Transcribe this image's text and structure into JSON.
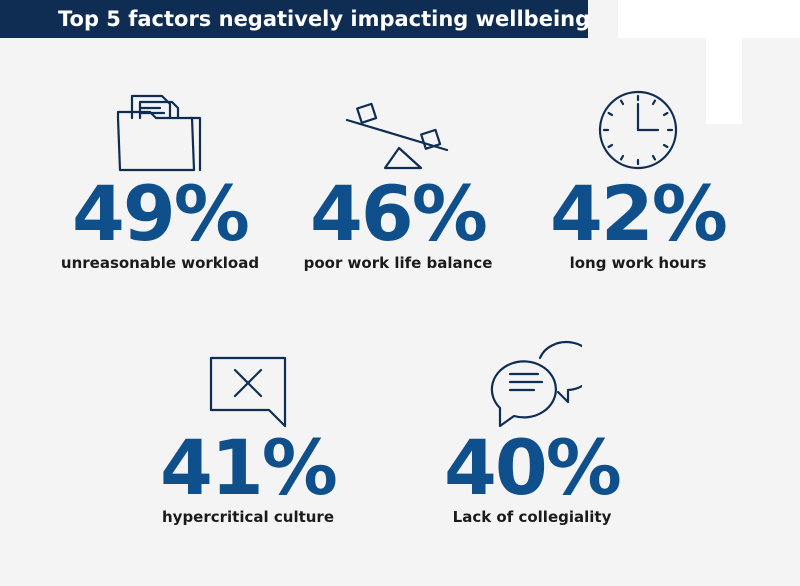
{
  "chart_data": {
    "type": "table",
    "title": "Top 5 factors negatively impacting wellbeing",
    "categories": [
      "unreasonable workload",
      "poor work life balance",
      "long work hours",
      "hypercritical culture",
      "Lack of collegiality"
    ],
    "values": [
      49,
      46,
      42,
      41,
      40
    ],
    "unit": "%"
  },
  "stats": [
    {
      "value": "49%",
      "label": "unreasonable workload",
      "icon": "folder-icon"
    },
    {
      "value": "46%",
      "label": "poor work life balance",
      "icon": "seesaw-balance-icon"
    },
    {
      "value": "42%",
      "label": "long work hours",
      "icon": "clock-icon"
    },
    {
      "value": "41%",
      "label": "hypercritical culture",
      "icon": "rejected-message-icon"
    },
    {
      "value": "40%",
      "label": "Lack of collegiality",
      "icon": "chat-bubbles-icon"
    }
  ],
  "colors": {
    "title_bg": "#0f2d52",
    "value": "#0f4f8c",
    "background": "#f4f4f4"
  }
}
